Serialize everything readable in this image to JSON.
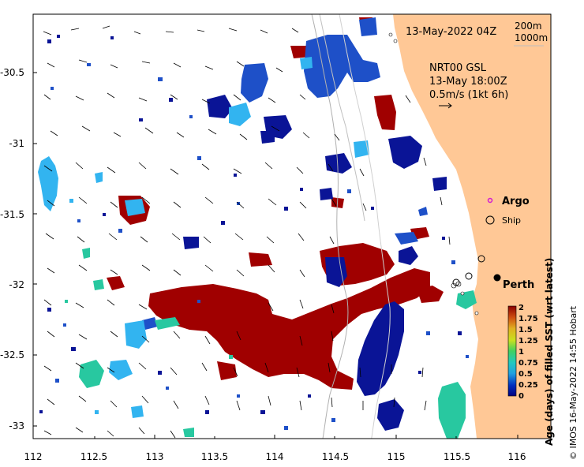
{
  "header": {
    "datetime": "13-May-2022 04Z",
    "contour_200": "200m",
    "contour_1000": "1000m"
  },
  "current_info": {
    "model": "NRT00 GSL",
    "time": "13-May 18:00Z",
    "scale": "0.5m/s (1kt 6h)"
  },
  "legend": {
    "argo_label": "Argo",
    "ship_label": "Ship",
    "argo_color": "#d21cd2"
  },
  "places": {
    "city": "Perth"
  },
  "axes": {
    "x_ticks": [
      "112",
      "112.5",
      "113",
      "113.5",
      "114",
      "114.5",
      "115",
      "115.5",
      "116"
    ],
    "y_ticks": [
      "-30.5",
      "-31",
      "-31.5",
      "-32",
      "-32.5",
      "-33"
    ]
  },
  "colorbar": {
    "label": "Age (days) of filled SST (wrt latest)",
    "ticks": [
      "2",
      "1.75",
      "1.5",
      "1.25",
      "1",
      "0.75",
      "0.5",
      "0.25",
      "0"
    ],
    "colors": [
      "#8b0000",
      "#b22222",
      "#d2691e",
      "#d9b42c",
      "#78d242",
      "#20c0a0",
      "#1fa0e0",
      "#1050c8",
      "#000080"
    ]
  },
  "credit": "© IMOS 16-May-2022 14:55 Hobart",
  "colors": {
    "land": "#ffc896",
    "dark_red": "#a00000",
    "navy": "#0a1496",
    "blue": "#1e50c8",
    "light_blue": "#32b4f0",
    "teal": "#28c8a0"
  }
}
